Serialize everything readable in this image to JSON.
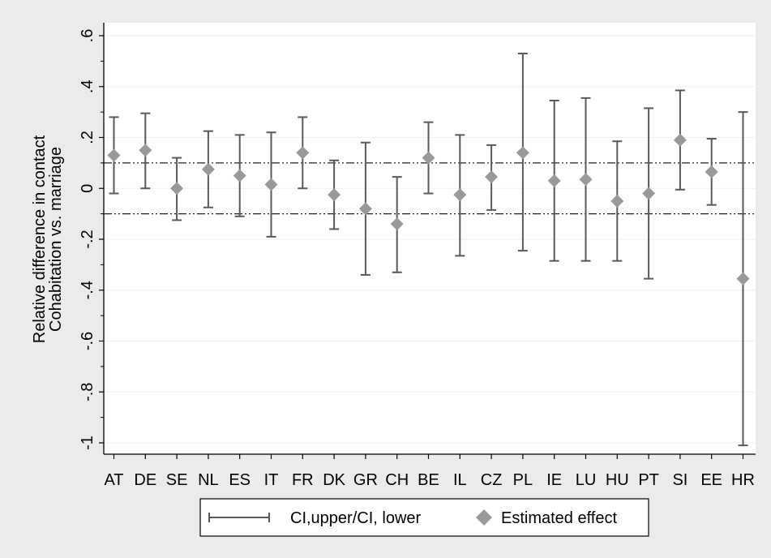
{
  "chart_data": {
    "type": "scatter",
    "title": "",
    "xlabel": "",
    "ylabel_lines": [
      "Relative difference in contact",
      "Cohabitation vs. marriage"
    ],
    "ylim": [
      -1.05,
      0.65
    ],
    "yticks": [
      0.6,
      0.4,
      0.2,
      0,
      -0.2,
      -0.4,
      -0.6,
      -0.8,
      -1
    ],
    "ytick_labels": [
      ".6",
      ".4",
      ".2",
      "0",
      "-.2",
      "-.4",
      "-.6",
      "-.8",
      "-1"
    ],
    "reference_lines": [
      0.1,
      -0.1
    ],
    "grid": true,
    "legend_position": "bottom",
    "categories": [
      "AT",
      "DE",
      "SE",
      "NL",
      "ES",
      "IT",
      "FR",
      "DK",
      "GR",
      "CH",
      "BE",
      "IL",
      "CZ",
      "PL",
      "IE",
      "LU",
      "HU",
      "PT",
      "SI",
      "EE",
      "HR"
    ],
    "series": [
      {
        "name": "Estimated effect",
        "marker": "diamond",
        "color": "#999999",
        "values": [
          0.13,
          0.15,
          0.0,
          0.075,
          0.05,
          0.015,
          0.14,
          -0.025,
          -0.08,
          -0.14,
          0.12,
          -0.025,
          0.045,
          0.14,
          0.03,
          0.035,
          -0.05,
          -0.02,
          0.19,
          0.065,
          -0.355
        ]
      },
      {
        "name": "CI,upper/CI, lower",
        "marker": "capped-range",
        "color": "#595959",
        "upper": [
          0.28,
          0.295,
          0.12,
          0.225,
          0.21,
          0.22,
          0.28,
          0.11,
          0.18,
          0.045,
          0.26,
          0.21,
          0.17,
          0.53,
          0.345,
          0.355,
          0.185,
          0.315,
          0.385,
          0.195,
          0.3
        ],
        "lower": [
          -0.02,
          0.0,
          -0.125,
          -0.075,
          -0.11,
          -0.19,
          0.0,
          -0.16,
          -0.34,
          -0.33,
          -0.02,
          -0.265,
          -0.085,
          -0.245,
          -0.285,
          -0.285,
          -0.285,
          -0.355,
          -0.005,
          -0.065,
          -1.01
        ]
      }
    ],
    "colors": {
      "background": "#ebebeb",
      "plot_background": "#ffffff",
      "grid": "#eaf2f3",
      "marker": "#999999",
      "ci_line": "#595959"
    }
  },
  "legend": {
    "ci_label": "CI,upper/CI, lower",
    "effect_label": "Estimated effect"
  }
}
